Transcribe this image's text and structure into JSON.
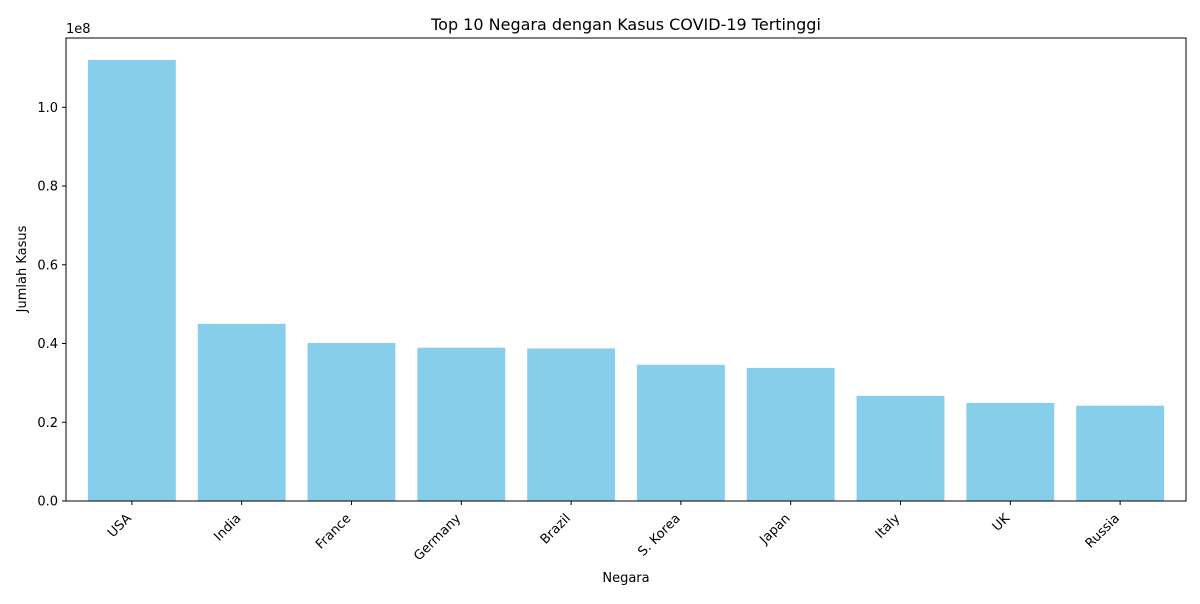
{
  "chart_data": {
    "type": "bar",
    "title": "Top 10 Negara dengan Kasus COVID-19 Tertinggi",
    "xlabel": "Negara",
    "ylabel": "Jumlah Kasus",
    "y_scale_label": "1e8",
    "categories": [
      "USA",
      "India",
      "France",
      "Germany",
      "Brazil",
      "S. Korea",
      "Japan",
      "Italy",
      "UK",
      "Russia"
    ],
    "values": [
      112000000,
      45000000,
      40150000,
      38950000,
      38750000,
      34600000,
      33800000,
      26700000,
      24900000,
      24200000
    ],
    "ylim": [
      0,
      117600000
    ],
    "yticks": [
      0,
      20000000,
      40000000,
      60000000,
      80000000,
      100000000
    ],
    "ytick_labels": [
      "0.0",
      "0.2",
      "0.4",
      "0.6",
      "0.8",
      "1.0"
    ],
    "bar_color": "#87ceeb",
    "grid": false,
    "legend": "none"
  }
}
